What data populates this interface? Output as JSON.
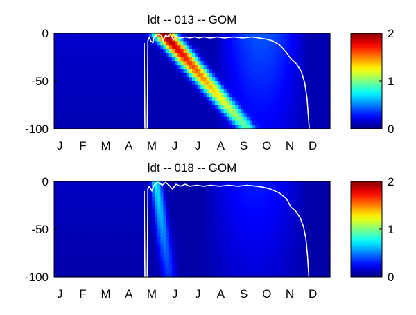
{
  "chart_data": [
    {
      "type": "heatmap",
      "title": "ldt -- 013 -- GOM",
      "xlabel": "",
      "ylabel": "",
      "x_tick_labels": [
        "J",
        "F",
        "M",
        "A",
        "M",
        "J",
        "J",
        "A",
        "S",
        "O",
        "N",
        "D"
      ],
      "y_ticks": [
        0,
        -50,
        -100
      ],
      "ylim": [
        -100,
        0
      ],
      "xlim": [
        0,
        12
      ],
      "grid": false,
      "colorbar": {
        "range": [
          0,
          2
        ],
        "ticks": [
          0,
          1,
          2
        ],
        "colormap": "jet"
      },
      "bloom_band": {
        "peak_value": 2.0,
        "surface_start_month": 4.2,
        "surface_end_month": 5.3,
        "bottom_start_month": 7.9,
        "bottom_end_month": 8.9,
        "background_value": 0.1,
        "late_season_value": 0.32,
        "late_season_months": [
          7.0,
          11.0
        ]
      },
      "mixed_layer_depth": {
        "color": "#ffffff",
        "points": [
          [
            3.92,
            -10
          ],
          [
            3.95,
            -100
          ],
          [
            4.05,
            -100
          ],
          [
            4.08,
            -8
          ],
          [
            4.15,
            -4
          ],
          [
            4.2,
            -8
          ],
          [
            4.3,
            -10
          ],
          [
            4.35,
            -4
          ],
          [
            4.45,
            -2
          ],
          [
            4.55,
            -1
          ],
          [
            4.65,
            -2
          ],
          [
            4.75,
            -8
          ],
          [
            4.85,
            -2
          ],
          [
            4.95,
            -4
          ],
          [
            5.05,
            -1
          ],
          [
            5.2,
            -7
          ],
          [
            5.3,
            -3
          ],
          [
            5.5,
            -5
          ],
          [
            5.7,
            -4
          ],
          [
            5.9,
            -5
          ],
          [
            6.1,
            -4
          ],
          [
            6.3,
            -5
          ],
          [
            6.5,
            -4
          ],
          [
            6.8,
            -5
          ],
          [
            7.1,
            -4
          ],
          [
            7.4,
            -5
          ],
          [
            7.8,
            -4
          ],
          [
            8.2,
            -5
          ],
          [
            8.6,
            -4
          ],
          [
            8.9,
            -5
          ],
          [
            9.2,
            -6
          ],
          [
            9.5,
            -8
          ],
          [
            9.8,
            -12
          ],
          [
            10.1,
            -20
          ],
          [
            10.2,
            -24
          ],
          [
            10.35,
            -28
          ],
          [
            10.5,
            -31
          ],
          [
            10.65,
            -36
          ],
          [
            10.75,
            -40
          ],
          [
            10.9,
            -52
          ],
          [
            11.0,
            -68
          ],
          [
            11.05,
            -85
          ],
          [
            11.1,
            -100
          ]
        ]
      }
    },
    {
      "type": "heatmap",
      "title": "ldt -- 018 -- GOM",
      "xlabel": "",
      "ylabel": "",
      "x_tick_labels": [
        "J",
        "F",
        "M",
        "A",
        "M",
        "J",
        "J",
        "A",
        "S",
        "O",
        "N",
        "D"
      ],
      "y_ticks": [
        0,
        -50,
        -100
      ],
      "ylim": [
        -100,
        0
      ],
      "xlim": [
        0,
        12
      ],
      "grid": false,
      "colorbar": {
        "range": [
          0,
          2
        ],
        "ticks": [
          0,
          1,
          2
        ],
        "colormap": "jet"
      },
      "bloom_band": {
        "peak_value": 0.75,
        "surface_start_month": 4.15,
        "surface_end_month": 4.7,
        "bottom_start_month": 4.6,
        "bottom_end_month": 5.4,
        "background_value": 0.08,
        "late_season_value": 0.22,
        "late_season_months": [
          6.5,
          11.0
        ]
      },
      "mixed_layer_depth": {
        "color": "#ffffff",
        "points": [
          [
            3.92,
            -10
          ],
          [
            3.95,
            -100
          ],
          [
            4.05,
            -100
          ],
          [
            4.08,
            -8
          ],
          [
            4.15,
            -5
          ],
          [
            4.25,
            -10
          ],
          [
            4.35,
            -4
          ],
          [
            4.45,
            -2
          ],
          [
            4.55,
            -1
          ],
          [
            4.7,
            -4
          ],
          [
            4.85,
            -1
          ],
          [
            5.0,
            -4
          ],
          [
            5.15,
            -8
          ],
          [
            5.3,
            -3
          ],
          [
            5.5,
            -5
          ],
          [
            5.7,
            -3
          ],
          [
            5.9,
            -5
          ],
          [
            6.2,
            -4
          ],
          [
            6.5,
            -5
          ],
          [
            6.8,
            -4
          ],
          [
            7.2,
            -5
          ],
          [
            7.6,
            -4
          ],
          [
            8.0,
            -5
          ],
          [
            8.4,
            -4
          ],
          [
            8.8,
            -5
          ],
          [
            9.1,
            -6
          ],
          [
            9.4,
            -8
          ],
          [
            9.8,
            -12
          ],
          [
            10.1,
            -18
          ],
          [
            10.3,
            -27
          ],
          [
            10.5,
            -31
          ],
          [
            10.7,
            -38
          ],
          [
            10.85,
            -48
          ],
          [
            10.95,
            -60
          ],
          [
            11.02,
            -78
          ],
          [
            11.08,
            -100
          ]
        ]
      }
    }
  ]
}
